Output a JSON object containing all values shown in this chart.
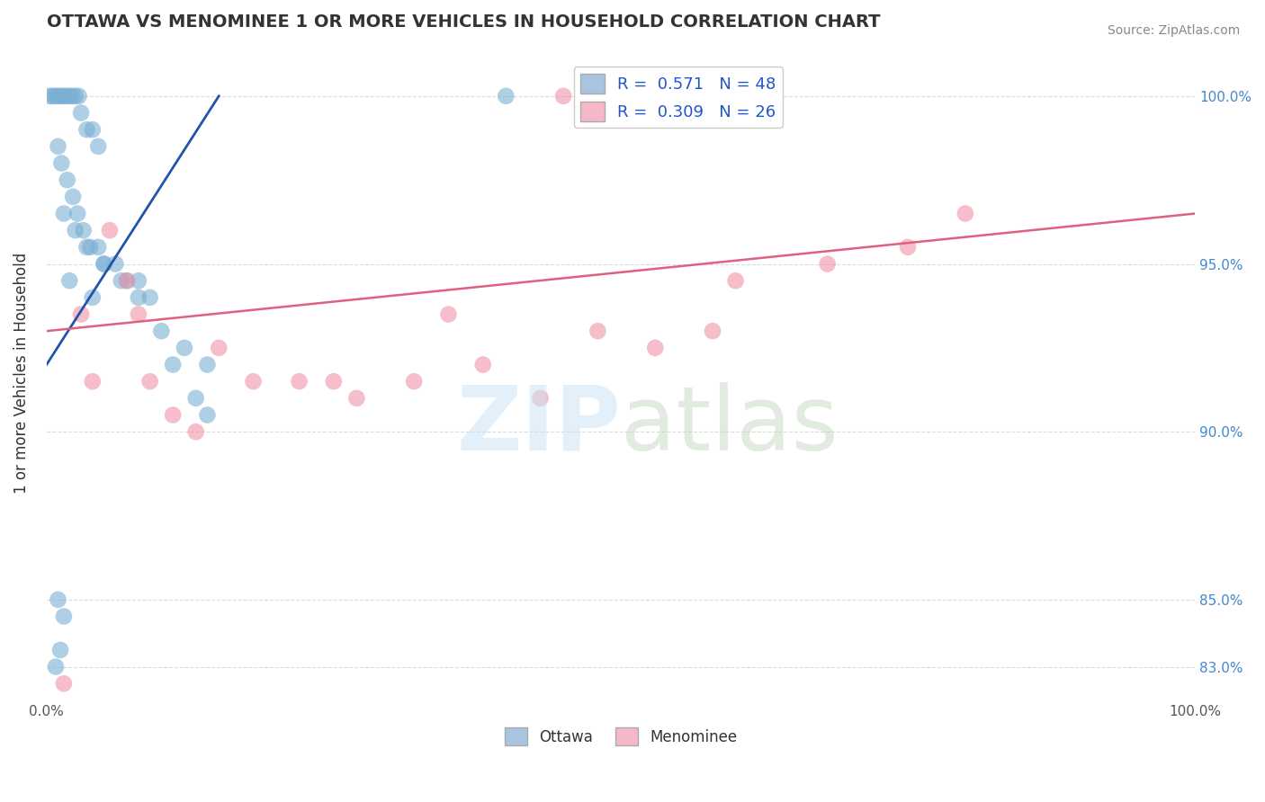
{
  "title": "OTTAWA VS MENOMINEE 1 OR MORE VEHICLES IN HOUSEHOLD CORRELATION CHART",
  "source": "Source: ZipAtlas.com",
  "ylabel": "1 or more Vehicles in Household",
  "ylabel_ticks": [
    "83.0%",
    "85.0%",
    "90.0%",
    "95.0%",
    "100.0%"
  ],
  "ytick_vals": [
    83.0,
    85.0,
    90.0,
    95.0,
    100.0
  ],
  "xlim": [
    0,
    100
  ],
  "ylim": [
    82.0,
    101.5
  ],
  "legend_blue_label": "R =  0.571   N = 48",
  "legend_pink_label": "R =  0.309   N = 26",
  "legend_color_blue": "#a8c4e0",
  "legend_color_pink": "#f4b8c8",
  "dot_color_blue": "#7bafd4",
  "dot_color_pink": "#f093a8",
  "line_color_blue": "#2255aa",
  "line_color_pink": "#e06080",
  "ottawa_x": [
    0.3,
    0.5,
    0.8,
    1.0,
    1.2,
    1.5,
    1.7,
    2.0,
    2.2,
    2.5,
    2.8,
    3.0,
    3.5,
    4.0,
    4.5,
    1.0,
    1.3,
    1.8,
    2.3,
    2.7,
    3.2,
    3.8,
    4.5,
    5.0,
    6.0,
    7.0,
    8.0,
    9.0,
    10.0,
    11.0,
    13.0,
    14.0,
    1.5,
    2.5,
    3.5,
    5.0,
    6.5,
    8.0,
    12.0,
    14.0,
    40.0,
    55.0,
    1.0,
    1.5,
    0.8,
    1.2,
    2.0,
    4.0
  ],
  "ottawa_y": [
    100.0,
    100.0,
    100.0,
    100.0,
    100.0,
    100.0,
    100.0,
    100.0,
    100.0,
    100.0,
    100.0,
    99.5,
    99.0,
    99.0,
    98.5,
    98.5,
    98.0,
    97.5,
    97.0,
    96.5,
    96.0,
    95.5,
    95.5,
    95.0,
    95.0,
    94.5,
    94.5,
    94.0,
    93.0,
    92.0,
    91.0,
    90.5,
    96.5,
    96.0,
    95.5,
    95.0,
    94.5,
    94.0,
    92.5,
    92.0,
    100.0,
    100.0,
    85.0,
    84.5,
    83.0,
    83.5,
    94.5,
    94.0
  ],
  "menominee_x": [
    1.5,
    3.0,
    5.5,
    7.0,
    9.0,
    11.0,
    13.0,
    18.0,
    22.0,
    27.0,
    32.0,
    38.0,
    43.0,
    48.0,
    53.0,
    60.0,
    68.0,
    75.0,
    80.0,
    4.0,
    8.0,
    15.0,
    25.0,
    35.0,
    45.0,
    58.0
  ],
  "menominee_y": [
    82.5,
    93.5,
    96.0,
    94.5,
    91.5,
    90.5,
    90.0,
    91.5,
    91.5,
    91.0,
    91.5,
    92.0,
    91.0,
    93.0,
    92.5,
    94.5,
    95.0,
    95.5,
    96.5,
    91.5,
    93.5,
    92.5,
    91.5,
    93.5,
    100.0,
    93.0
  ],
  "dot_size_blue": 180,
  "dot_size_pink": 180,
  "blue_line_x": [
    0,
    15
  ],
  "blue_line_y": [
    92.0,
    100.0
  ],
  "pink_line_x": [
    0,
    100
  ],
  "pink_line_y": [
    93.0,
    96.5
  ]
}
